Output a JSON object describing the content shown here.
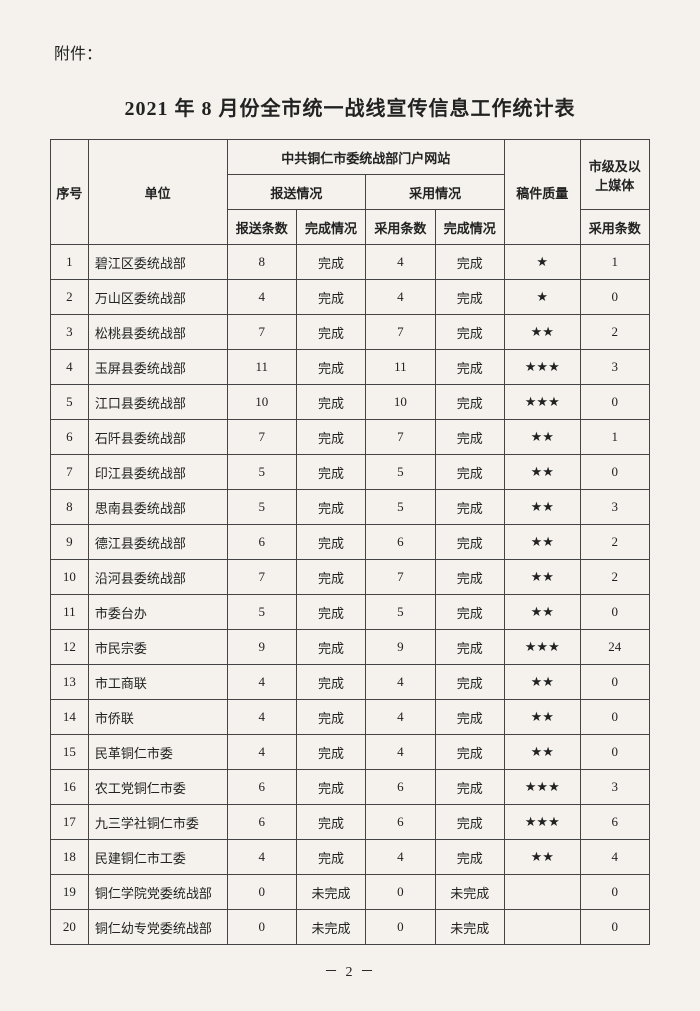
{
  "attachment_label": "附件：",
  "title": "2021 年 8 月份全市统一战线宣传信息工作统计表",
  "headers": {
    "seq": "序号",
    "unit": "单位",
    "website": "中共铜仁市委统战部门户网站",
    "submit": "报送情况",
    "adopt": "采用情况",
    "quality": "稿件质量",
    "media": "市级及以上媒体",
    "submit_count": "报送条数",
    "submit_status": "完成情况",
    "adopt_count": "采用条数",
    "adopt_status": "完成情况",
    "media_count": "采用条数"
  },
  "status": {
    "done": "完成",
    "undone": "未完成"
  },
  "rows": [
    {
      "seq": "1",
      "unit": "碧江区委统战部",
      "s": "8",
      "ss": "完成",
      "a": "4",
      "as": "完成",
      "q": "★",
      "m": "1"
    },
    {
      "seq": "2",
      "unit": "万山区委统战部",
      "s": "4",
      "ss": "完成",
      "a": "4",
      "as": "完成",
      "q": "★",
      "m": "0"
    },
    {
      "seq": "3",
      "unit": "松桃县委统战部",
      "s": "7",
      "ss": "完成",
      "a": "7",
      "as": "完成",
      "q": "★★",
      "m": "2"
    },
    {
      "seq": "4",
      "unit": "玉屏县委统战部",
      "s": "11",
      "ss": "完成",
      "a": "11",
      "as": "完成",
      "q": "★★★",
      "m": "3"
    },
    {
      "seq": "5",
      "unit": "江口县委统战部",
      "s": "10",
      "ss": "完成",
      "a": "10",
      "as": "完成",
      "q": "★★★",
      "m": "0"
    },
    {
      "seq": "6",
      "unit": "石阡县委统战部",
      "s": "7",
      "ss": "完成",
      "a": "7",
      "as": "完成",
      "q": "★★",
      "m": "1"
    },
    {
      "seq": "7",
      "unit": "印江县委统战部",
      "s": "5",
      "ss": "完成",
      "a": "5",
      "as": "完成",
      "q": "★★",
      "m": "0"
    },
    {
      "seq": "8",
      "unit": "思南县委统战部",
      "s": "5",
      "ss": "完成",
      "a": "5",
      "as": "完成",
      "q": "★★",
      "m": "3"
    },
    {
      "seq": "9",
      "unit": "德江县委统战部",
      "s": "6",
      "ss": "完成",
      "a": "6",
      "as": "完成",
      "q": "★★",
      "m": "2"
    },
    {
      "seq": "10",
      "unit": "沿河县委统战部",
      "s": "7",
      "ss": "完成",
      "a": "7",
      "as": "完成",
      "q": "★★",
      "m": "2"
    },
    {
      "seq": "11",
      "unit": "市委台办",
      "s": "5",
      "ss": "完成",
      "a": "5",
      "as": "完成",
      "q": "★★",
      "m": "0"
    },
    {
      "seq": "12",
      "unit": "市民宗委",
      "s": "9",
      "ss": "完成",
      "a": "9",
      "as": "完成",
      "q": "★★★",
      "m": "24"
    },
    {
      "seq": "13",
      "unit": "市工商联",
      "s": "4",
      "ss": "完成",
      "a": "4",
      "as": "完成",
      "q": "★★",
      "m": "0"
    },
    {
      "seq": "14",
      "unit": "市侨联",
      "s": "4",
      "ss": "完成",
      "a": "4",
      "as": "完成",
      "q": "★★",
      "m": "0"
    },
    {
      "seq": "15",
      "unit": "民革铜仁市委",
      "s": "4",
      "ss": "完成",
      "a": "4",
      "as": "完成",
      "q": "★★",
      "m": "0"
    },
    {
      "seq": "16",
      "unit": "农工党铜仁市委",
      "s": "6",
      "ss": "完成",
      "a": "6",
      "as": "完成",
      "q": "★★★",
      "m": "3"
    },
    {
      "seq": "17",
      "unit": "九三学社铜仁市委",
      "s": "6",
      "ss": "完成",
      "a": "6",
      "as": "完成",
      "q": "★★★",
      "m": "6"
    },
    {
      "seq": "18",
      "unit": "民建铜仁市工委",
      "s": "4",
      "ss": "完成",
      "a": "4",
      "as": "完成",
      "q": "★★",
      "m": "4"
    },
    {
      "seq": "19",
      "unit": "铜仁学院党委统战部",
      "s": "0",
      "ss": "未完成",
      "a": "0",
      "as": "未完成",
      "q": "",
      "m": "0"
    },
    {
      "seq": "20",
      "unit": "铜仁幼专党委统战部",
      "s": "0",
      "ss": "未完成",
      "a": "0",
      "as": "未完成",
      "q": "",
      "m": "0"
    }
  ],
  "page_number": "－ 2 －"
}
